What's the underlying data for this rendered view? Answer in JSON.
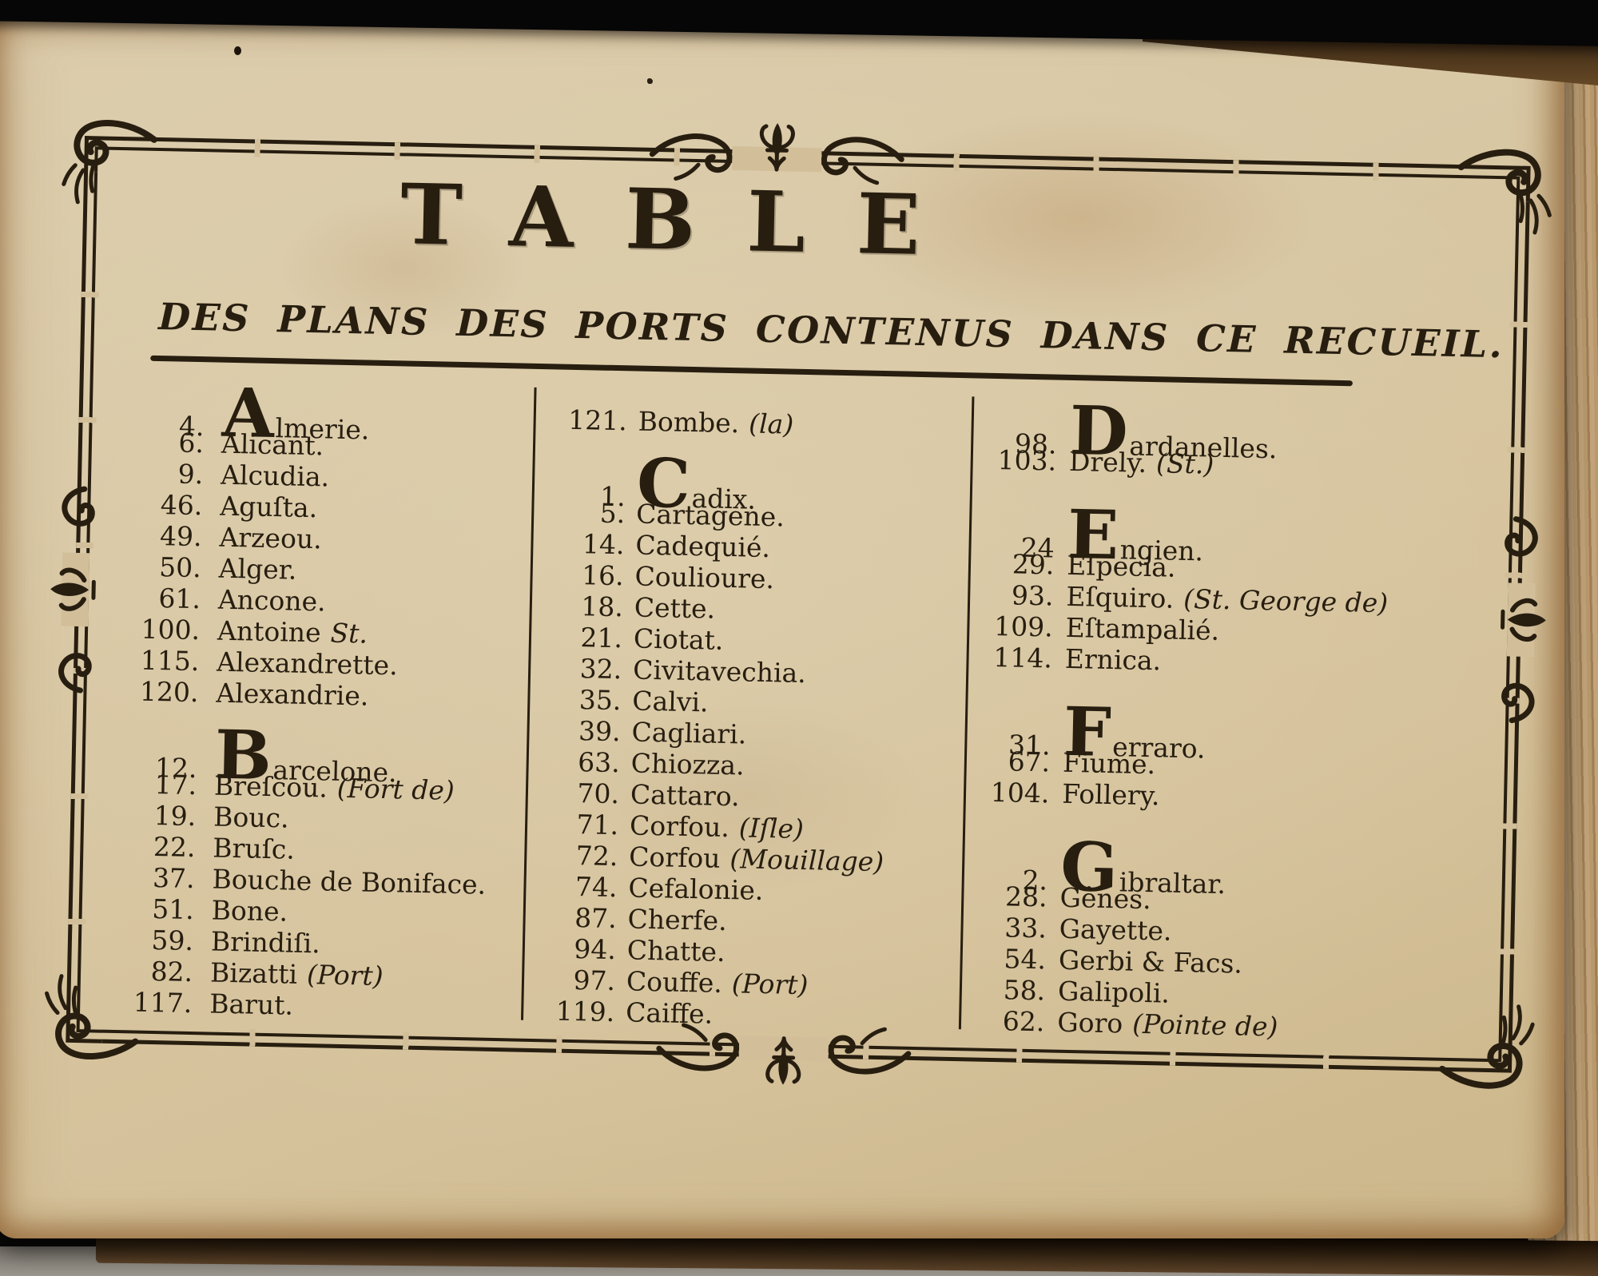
{
  "header": {
    "title": "TABLE",
    "subtitle": "DES PLANS DES PORTS CONTENUS DANS CE RECUEIL."
  },
  "columns": [
    {
      "groups": [
        {
          "letter": "A",
          "entries": [
            {
              "num": "4.",
              "initial": "A",
              "rest": "lmerie."
            },
            {
              "num": "6.",
              "name": "Alicant."
            },
            {
              "num": "9.",
              "name": "Alcudia."
            },
            {
              "num": "46.",
              "name": "Aguſta."
            },
            {
              "num": "49.",
              "name": "Arzeou."
            },
            {
              "num": "50.",
              "name": "Alger."
            },
            {
              "num": "61.",
              "name": "Ancone."
            },
            {
              "num": "100.",
              "name": "Antoine",
              "note": "St."
            },
            {
              "num": "115.",
              "name": "Alexandrette."
            },
            {
              "num": "120.",
              "name": "Alexandrie."
            }
          ]
        },
        {
          "letter": "B",
          "entries": [
            {
              "num": "12.",
              "initial": "B",
              "rest": "arcelone."
            },
            {
              "num": "17.",
              "name": "Breſcou.",
              "note": "(Fort de)"
            },
            {
              "num": "19.",
              "name": "Bouc."
            },
            {
              "num": "22.",
              "name": "Bruſc."
            },
            {
              "num": "37.",
              "name": "Bouche de Boniface."
            },
            {
              "num": "51.",
              "name": "Bone."
            },
            {
              "num": "59.",
              "name": "Brindiſi."
            },
            {
              "num": "82.",
              "name": "Bizatti",
              "note": "(Port)"
            },
            {
              "num": "117.",
              "name": "Barut."
            }
          ]
        }
      ]
    },
    {
      "groups": [
        {
          "letter": "B-cont",
          "entries": [
            {
              "num": "121.",
              "name": "Bombe.",
              "note": "(la)"
            }
          ]
        },
        {
          "letter": "C",
          "entries": [
            {
              "num": "1.",
              "initial": "C",
              "rest": "adix."
            },
            {
              "num": "5.",
              "name": "Cartagene."
            },
            {
              "num": "14.",
              "name": "Cadequié."
            },
            {
              "num": "16.",
              "name": "Coulioure."
            },
            {
              "num": "18.",
              "name": "Cette."
            },
            {
              "num": "21.",
              "name": "Ciotat."
            },
            {
              "num": "32.",
              "name": "Civitavechia."
            },
            {
              "num": "35.",
              "name": "Calvi."
            },
            {
              "num": "39.",
              "name": "Cagliari."
            },
            {
              "num": "63.",
              "name": "Chiozza."
            },
            {
              "num": "70.",
              "name": "Cattaro."
            },
            {
              "num": "71.",
              "name": "Corfou.",
              "note": "(Iſle)"
            },
            {
              "num": "72.",
              "name": "Corfou",
              "note": "(Mouillage)"
            },
            {
              "num": "74.",
              "name": "Cefalonie."
            },
            {
              "num": "87.",
              "name": "Cherfe."
            },
            {
              "num": "94.",
              "name": "Chatte."
            },
            {
              "num": "97.",
              "name": "Couffe.",
              "note": "(Port)"
            },
            {
              "num": "119.",
              "name": "Caiffe."
            }
          ]
        }
      ]
    },
    {
      "groups": [
        {
          "letter": "D",
          "entries": [
            {
              "num": "98.",
              "initial": "D",
              "rest": "ardanelles."
            },
            {
              "num": "103.",
              "name": "Drely.",
              "note": "(St.)"
            }
          ]
        },
        {
          "letter": "E",
          "entries": [
            {
              "num": "24",
              "initial": "E",
              "rest": "ngien."
            },
            {
              "num": "29.",
              "name": "Eſpecia."
            },
            {
              "num": "93.",
              "name": "Eſquiro.",
              "note": "(St. George de)"
            },
            {
              "num": "109.",
              "name": "Eſtampalié."
            },
            {
              "num": "114.",
              "name": "Ernica."
            }
          ]
        },
        {
          "letter": "F",
          "entries": [
            {
              "num": "31.",
              "initial": "F",
              "rest": "erraro."
            },
            {
              "num": "67.",
              "name": "Fiume."
            },
            {
              "num": "104.",
              "name": "Follery."
            }
          ]
        },
        {
          "letter": "G",
          "entries": [
            {
              "num": "2.",
              "initial": "G",
              "rest": "ibraltar."
            },
            {
              "num": "28.",
              "name": "Gênes."
            },
            {
              "num": "33.",
              "name": "Gayette."
            },
            {
              "num": "54.",
              "name": "Gerbi & Facs."
            },
            {
              "num": "58.",
              "name": "Galipoli."
            },
            {
              "num": "62.",
              "name": "Goro",
              "note": "(Pointe de)"
            }
          ]
        }
      ]
    }
  ],
  "ornaments": {
    "corner": "scroll-flourish",
    "edge": "fleur-de-lis",
    "center": "scrolls-with-fleur-de-lis"
  },
  "colors": {
    "paper": "#d8c7a5",
    "paper2": "#d2bf9a",
    "ink": "#271e10",
    "black_bg": "#0b0a08",
    "table": "#8f8b83",
    "fore_edge": "#2e1d0c",
    "under_pages": "#b3935f"
  }
}
